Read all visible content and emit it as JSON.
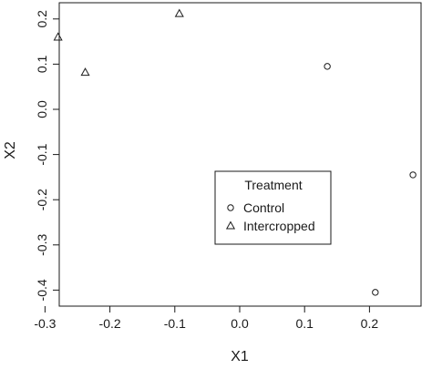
{
  "chart_data": {
    "type": "scatter",
    "xlabel": "X1",
    "ylabel": "X2",
    "xlim": [
      -0.3,
      0.27
    ],
    "ylim": [
      -0.42,
      0.23
    ],
    "x_ticks": [
      "-0.3",
      "-0.2",
      "-0.1",
      "0.0",
      "0.1",
      "0.2"
    ],
    "x_tick_values": [
      -0.3,
      -0.2,
      -0.1,
      0.0,
      0.1,
      0.2
    ],
    "y_ticks": [
      "-0.4",
      "-0.3",
      "-0.2",
      "-0.1",
      "0.0",
      "0.1",
      "0.2"
    ],
    "y_tick_values": [
      -0.4,
      -0.3,
      -0.2,
      -0.1,
      0.0,
      0.1,
      0.2
    ],
    "grid": false,
    "legend": {
      "title": "Treatment",
      "placement": "lower-right",
      "entries": [
        {
          "label": "Control",
          "marker": "circle"
        },
        {
          "label": "Intercropped",
          "marker": "triangle"
        }
      ]
    },
    "series": [
      {
        "name": "Control",
        "marker": "circle",
        "points": [
          {
            "x": 0.135,
            "y": 0.095
          },
          {
            "x": 0.267,
            "y": -0.145
          },
          {
            "x": 0.209,
            "y": -0.405
          }
        ]
      },
      {
        "name": "Intercropped",
        "marker": "triangle",
        "points": [
          {
            "x": -0.28,
            "y": 0.16
          },
          {
            "x": -0.238,
            "y": 0.082
          },
          {
            "x": -0.093,
            "y": 0.212
          }
        ]
      }
    ],
    "colors": {
      "marker": "#1a1a1a",
      "axis": "#1a1a1a"
    }
  }
}
